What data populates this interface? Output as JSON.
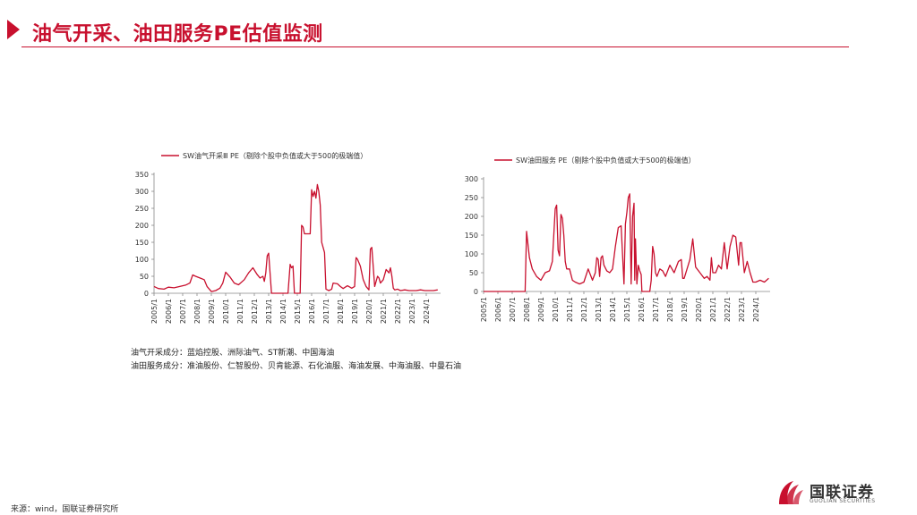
{
  "header": {
    "title": "油气开采、油田服务PE估值监测"
  },
  "colors": {
    "accent": "#c8102e",
    "series": "#c8102e"
  },
  "chart_data": [
    {
      "type": "line",
      "title": "",
      "legend": "SW油气开采Ⅲ PE（剔除个股中负值或大于500的极端值）",
      "ylim": [
        0,
        350
      ],
      "yticks": [
        0,
        50,
        100,
        150,
        200,
        250,
        300,
        350
      ],
      "xlim": [
        2005.0,
        2025.0
      ],
      "xticks": [
        "2005/1",
        "2006/1",
        "2007/1",
        "2008/1",
        "2009/1",
        "2010/1",
        "2011/1",
        "2012/1",
        "2013/1",
        "2014/1",
        "2015/1",
        "2016/1",
        "2017/1",
        "2018/1",
        "2019/1",
        "2020/1",
        "2021/1",
        "2022/1",
        "2023/1",
        "2024/1"
      ],
      "series": [
        {
          "name": "SW油气开采Ⅲ PE",
          "x": [
            2005.0,
            2005.3,
            2005.7,
            2006.0,
            2006.4,
            2006.8,
            2007.2,
            2007.5,
            2007.7,
            2007.9,
            2008.2,
            2008.5,
            2008.7,
            2009.0,
            2009.3,
            2009.6,
            2009.8,
            2010.0,
            2010.3,
            2010.6,
            2010.9,
            2011.3,
            2011.6,
            2011.9,
            2012.2,
            2012.4,
            2012.6,
            2012.7,
            2012.8,
            2012.9,
            2013.0,
            2013.2,
            2013.5,
            2013.8,
            2014.1,
            2014.3,
            2014.35,
            2014.5,
            2014.6,
            2014.7,
            2014.8,
            2014.9,
            2015.0,
            2015.2,
            2015.3,
            2015.4,
            2015.5,
            2015.7,
            2015.9,
            2016.0,
            2016.1,
            2016.2,
            2016.3,
            2016.4,
            2016.5,
            2016.6,
            2016.7,
            2016.8,
            2016.9,
            2017.0,
            2017.1,
            2017.2,
            2017.4,
            2017.5,
            2017.8,
            2018.0,
            2018.2,
            2018.5,
            2018.8,
            2019.0,
            2019.1,
            2019.2,
            2019.4,
            2019.6,
            2019.8,
            2020.0,
            2020.1,
            2020.2,
            2020.4,
            2020.6,
            2020.7,
            2020.8,
            2020.9,
            2021.0,
            2021.2,
            2021.4,
            2021.5,
            2021.6,
            2021.7,
            2021.8,
            2022.0,
            2022.2,
            2022.5,
            2022.8,
            2023.0,
            2023.3,
            2023.6,
            2023.9,
            2024.2,
            2024.5,
            2024.8
          ],
          "values": [
            20,
            14,
            12,
            18,
            16,
            20,
            24,
            30,
            54,
            50,
            45,
            40,
            20,
            5,
            8,
            15,
            30,
            62,
            48,
            30,
            25,
            40,
            60,
            75,
            55,
            45,
            50,
            35,
            60,
            110,
            118,
            0,
            0,
            0,
            0,
            0,
            0,
            85,
            75,
            80,
            0,
            0,
            0,
            0,
            200,
            195,
            175,
            175,
            175,
            305,
            285,
            300,
            280,
            320,
            300,
            260,
            150,
            135,
            120,
            12,
            10,
            8,
            12,
            30,
            28,
            20,
            14,
            22,
            15,
            20,
            105,
            100,
            80,
            40,
            20,
            10,
            130,
            135,
            20,
            50,
            45,
            30,
            35,
            40,
            70,
            60,
            75,
            50,
            15,
            10,
            12,
            8,
            10,
            8,
            8,
            8,
            10,
            8,
            8,
            8,
            10
          ]
        }
      ]
    },
    {
      "type": "line",
      "title": "",
      "legend": "SW油田服务 PE（剔除个股中负值或大于500的极端值）",
      "ylim": [
        0,
        300
      ],
      "yticks": [
        0,
        50,
        100,
        150,
        200,
        250,
        300
      ],
      "xlim": [
        2005.0,
        2025.0
      ],
      "xticks": [
        "2005/1",
        "2006/1",
        "2007/1",
        "2008/1",
        "2009/1",
        "2010/1",
        "2011/1",
        "2012/1",
        "2013/1",
        "2014/1",
        "2015/1",
        "2016/1",
        "2017/1",
        "2018/1",
        "2019/1",
        "2020/1",
        "2021/1",
        "2022/1",
        "2023/1",
        "2024/1"
      ],
      "series": [
        {
          "name": "SW油田服务 PE",
          "x": [
            2005.0,
            2006.0,
            2007.0,
            2007.5,
            2007.9,
            2008.0,
            2008.2,
            2008.4,
            2008.7,
            2009.0,
            2009.3,
            2009.6,
            2009.8,
            2010.0,
            2010.1,
            2010.2,
            2010.3,
            2010.4,
            2010.5,
            2010.6,
            2010.7,
            2010.8,
            2011.0,
            2011.2,
            2011.4,
            2011.7,
            2012.0,
            2012.3,
            2012.6,
            2012.8,
            2012.9,
            2013.0,
            2013.1,
            2013.2,
            2013.3,
            2013.4,
            2013.6,
            2013.8,
            2014.0,
            2014.2,
            2014.4,
            2014.6,
            2014.8,
            2014.9,
            2015.0,
            2015.1,
            2015.2,
            2015.3,
            2015.4,
            2015.5,
            2015.55,
            2015.6,
            2015.7,
            2015.8,
            2015.9,
            2016.0,
            2016.05,
            2016.2,
            2016.4,
            2016.6,
            2016.7,
            2016.8,
            2016.9,
            2017.0,
            2017.1,
            2017.3,
            2017.5,
            2017.7,
            2018.0,
            2018.3,
            2018.6,
            2018.8,
            2018.9,
            2019.0,
            2019.2,
            2019.4,
            2019.6,
            2019.8,
            2020.0,
            2020.2,
            2020.4,
            2020.6,
            2020.8,
            2020.9,
            2021.0,
            2021.2,
            2021.4,
            2021.6,
            2021.8,
            2022.0,
            2022.2,
            2022.4,
            2022.6,
            2022.8,
            2022.9,
            2023.0,
            2023.2,
            2023.4,
            2023.6,
            2023.8,
            2024.0,
            2024.3,
            2024.6,
            2024.9
          ],
          "values": [
            0,
            0,
            0,
            0,
            0,
            160,
            90,
            60,
            40,
            30,
            50,
            55,
            80,
            220,
            230,
            110,
            95,
            205,
            195,
            150,
            80,
            60,
            60,
            30,
            25,
            20,
            25,
            60,
            30,
            50,
            90,
            85,
            40,
            90,
            95,
            70,
            55,
            50,
            60,
            120,
            170,
            175,
            20,
            180,
            210,
            250,
            260,
            20,
            200,
            235,
            30,
            140,
            20,
            70,
            55,
            45,
            0,
            0,
            0,
            0,
            30,
            120,
            100,
            50,
            40,
            60,
            55,
            40,
            70,
            50,
            80,
            85,
            35,
            35,
            60,
            85,
            140,
            65,
            55,
            45,
            35,
            40,
            30,
            90,
            50,
            50,
            70,
            60,
            130,
            60,
            120,
            150,
            145,
            70,
            130,
            130,
            50,
            80,
            50,
            25,
            25,
            30,
            25,
            35
          ]
        }
      ]
    }
  ],
  "notes": {
    "line1": "油气开采成分：蓝焰控股、洲际油气、ST新潮、中国海油",
    "line2": "油田服务成分：准油股份、仁智股份、贝肯能源、石化油服、海油发展、中海油服、中曼石油"
  },
  "footer": {
    "source": "来源：wind，国联证券研究所"
  },
  "logo": {
    "name": "国联证券",
    "subtitle": "GUOLIAN SECURITIES"
  }
}
